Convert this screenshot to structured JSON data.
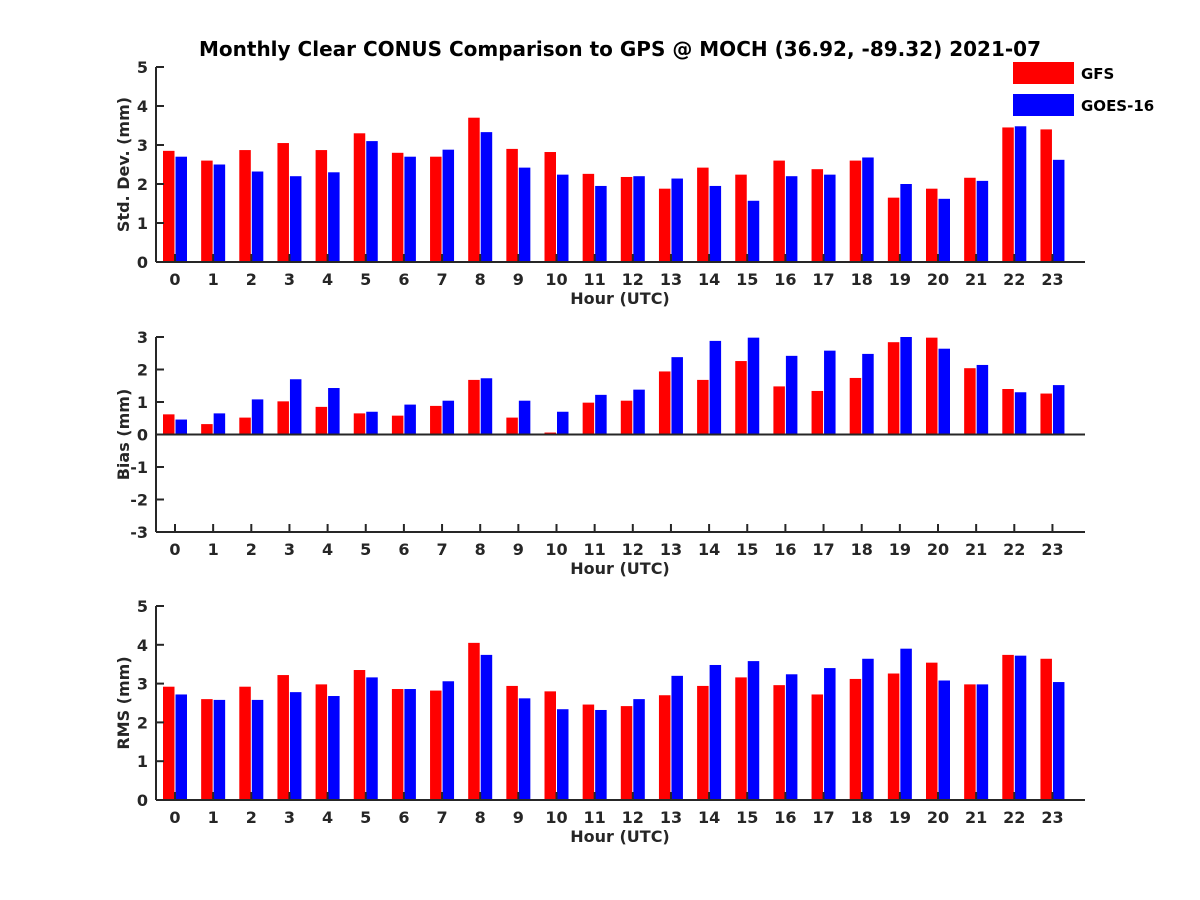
{
  "chart_data": {
    "title": "Monthly Clear CONUS Comparison to GPS @ MOCH (36.92, -89.32) 2021-07",
    "legend": {
      "placement": "top-right",
      "entries": [
        {
          "name": "GFS",
          "color": "#ff0000"
        },
        {
          "name": "GOES-16",
          "color": "#0000ff"
        }
      ]
    },
    "panels": [
      {
        "type": "bar",
        "xlabel": "Hour (UTC)",
        "ylabel": "Std. Dev. (mm)",
        "ylim": [
          0,
          5
        ],
        "yticks": [
          "0",
          "1",
          "2",
          "3",
          "4",
          "5"
        ],
        "categories": [
          "0",
          "1",
          "2",
          "3",
          "4",
          "5",
          "6",
          "7",
          "8",
          "9",
          "10",
          "11",
          "12",
          "13",
          "14",
          "15",
          "16",
          "17",
          "18",
          "19",
          "20",
          "21",
          "22",
          "23"
        ],
        "series": [
          {
            "name": "GFS",
            "color": "#ff0000",
            "values": [
              2.85,
              2.6,
              2.87,
              3.05,
              2.87,
              3.3,
              2.8,
              2.7,
              3.7,
              2.9,
              2.82,
              2.26,
              2.18,
              1.88,
              2.42,
              2.24,
              2.6,
              2.38,
              2.6,
              1.65,
              1.88,
              2.16,
              3.45,
              3.4
            ]
          },
          {
            "name": "GOES-16",
            "color": "#0000ff",
            "values": [
              2.7,
              2.5,
              2.32,
              2.2,
              2.3,
              3.1,
              2.7,
              2.88,
              3.33,
              2.42,
              2.24,
              1.95,
              2.2,
              2.14,
              1.95,
              1.57,
              2.2,
              2.24,
              2.68,
              2.0,
              1.62,
              2.08,
              3.48,
              2.62
            ]
          }
        ]
      },
      {
        "type": "bar",
        "xlabel": "Hour (UTC)",
        "ylabel": "Bias (mm)",
        "ylim": [
          -3,
          3
        ],
        "yticks": [
          "-3",
          "-2",
          "-1",
          "0",
          "1",
          "2",
          "3"
        ],
        "categories": [
          "0",
          "1",
          "2",
          "3",
          "4",
          "5",
          "6",
          "7",
          "8",
          "9",
          "10",
          "11",
          "12",
          "13",
          "14",
          "15",
          "16",
          "17",
          "18",
          "19",
          "20",
          "21",
          "22",
          "23"
        ],
        "series": [
          {
            "name": "GFS",
            "color": "#ff0000",
            "values": [
              0.62,
              0.32,
              0.52,
              1.02,
              0.85,
              0.65,
              0.58,
              0.88,
              1.68,
              0.52,
              0.06,
              0.98,
              1.04,
              1.94,
              1.68,
              2.26,
              1.48,
              1.34,
              1.74,
              2.84,
              2.98,
              2.04,
              1.4,
              1.26
            ]
          },
          {
            "name": "GOES-16",
            "color": "#0000ff",
            "values": [
              0.46,
              0.65,
              1.08,
              1.7,
              1.43,
              0.7,
              0.92,
              1.04,
              1.73,
              1.04,
              0.7,
              1.22,
              1.38,
              2.38,
              2.88,
              2.98,
              2.42,
              2.58,
              2.48,
              3.0,
              2.64,
              2.14,
              1.3,
              1.52
            ]
          }
        ]
      },
      {
        "type": "bar",
        "xlabel": "Hour (UTC)",
        "ylabel": "RMS (mm)",
        "ylim": [
          0,
          5
        ],
        "yticks": [
          "0",
          "1",
          "2",
          "3",
          "4",
          "5"
        ],
        "categories": [
          "0",
          "1",
          "2",
          "3",
          "4",
          "5",
          "6",
          "7",
          "8",
          "9",
          "10",
          "11",
          "12",
          "13",
          "14",
          "15",
          "16",
          "17",
          "18",
          "19",
          "20",
          "21",
          "22",
          "23"
        ],
        "series": [
          {
            "name": "GFS",
            "color": "#ff0000",
            "values": [
              2.92,
              2.6,
              2.92,
              3.22,
              2.98,
              3.35,
              2.86,
              2.82,
              4.05,
              2.94,
              2.8,
              2.46,
              2.42,
              2.7,
              2.94,
              3.16,
              2.96,
              2.72,
              3.12,
              3.26,
              3.54,
              2.98,
              3.74,
              3.64
            ]
          },
          {
            "name": "GOES-16",
            "color": "#0000ff",
            "values": [
              2.72,
              2.58,
              2.58,
              2.78,
              2.68,
              3.16,
              2.86,
              3.06,
              3.74,
              2.62,
              2.34,
              2.32,
              2.6,
              3.2,
              3.48,
              3.58,
              3.24,
              3.4,
              3.64,
              3.9,
              3.08,
              2.98,
              3.72,
              3.04
            ]
          }
        ]
      }
    ]
  }
}
